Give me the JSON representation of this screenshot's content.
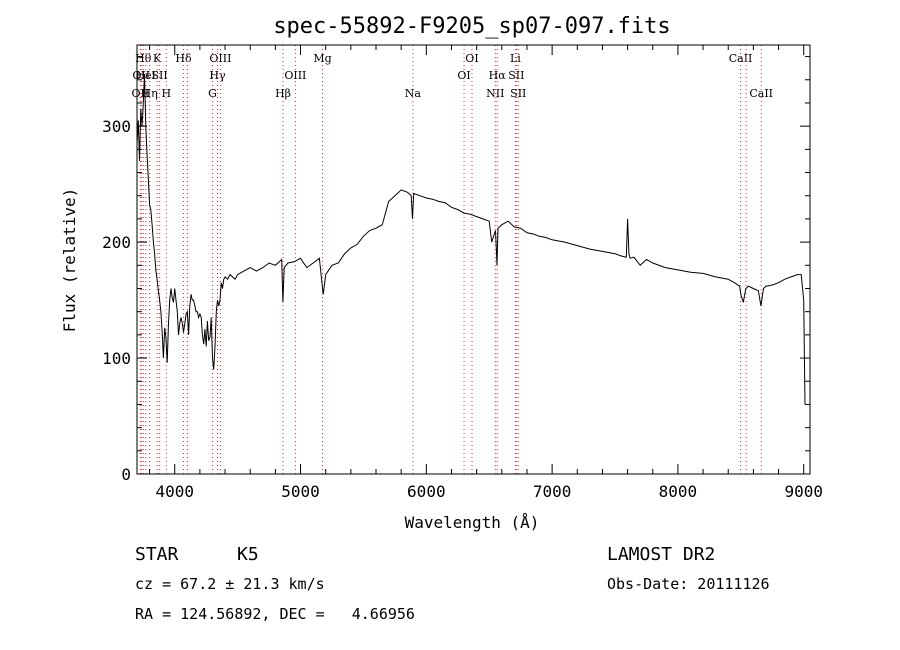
{
  "chart_data": {
    "type": "line",
    "title": "spec-55892-F9205_sp07-097.fits",
    "xlabel": "Wavelength (Å)",
    "ylabel": "Flux (relative)",
    "xlim": [
      3700,
      9050
    ],
    "ylim": [
      0,
      370
    ],
    "xticks": [
      4000,
      5000,
      6000,
      7000,
      8000,
      9000
    ],
    "yticks": [
      0,
      100,
      200,
      300
    ],
    "grid": false,
    "series": [
      {
        "x": [
          3700,
          3710,
          3720,
          3730,
          3740,
          3750,
          3760,
          3770,
          3780,
          3790,
          3800,
          3810,
          3820,
          3830,
          3840,
          3850,
          3860,
          3870,
          3880,
          3890,
          3900,
          3910,
          3920,
          3930,
          3940,
          3950,
          3960,
          3970,
          3980,
          3990,
          4000,
          4010,
          4020,
          4030,
          4040,
          4050,
          4060,
          4070,
          4080,
          4090,
          4100,
          4110,
          4120,
          4130,
          4140,
          4150,
          4160,
          4170,
          4180,
          4190,
          4200,
          4210,
          4220,
          4230,
          4240,
          4250,
          4260,
          4270,
          4280,
          4290,
          4300,
          4310,
          4320,
          4330,
          4340,
          4350,
          4360,
          4370,
          4380,
          4390,
          4400,
          4420,
          4440,
          4460,
          4480,
          4500,
          4550,
          4600,
          4650,
          4700,
          4750,
          4800,
          4850,
          4860,
          4870,
          4900,
          4950,
          5000,
          5050,
          5100,
          5150,
          5170,
          5180,
          5200,
          5250,
          5300,
          5350,
          5400,
          5450,
          5500,
          5550,
          5600,
          5650,
          5700,
          5750,
          5800,
          5850,
          5880,
          5890,
          5900,
          5950,
          6000,
          6050,
          6100,
          6150,
          6200,
          6250,
          6300,
          6350,
          6400,
          6450,
          6500,
          6520,
          6550,
          6562,
          6570,
          6600,
          6650,
          6700,
          6750,
          6800,
          6850,
          6900,
          6950,
          7000,
          7100,
          7200,
          7300,
          7400,
          7500,
          7550,
          7590,
          7600,
          7610,
          7620,
          7650,
          7700,
          7750,
          7800,
          7900,
          8000,
          8100,
          8200,
          8300,
          8400,
          8450,
          8490,
          8500,
          8520,
          8540,
          8560,
          8600,
          8640,
          8660,
          8680,
          8700,
          8750,
          8800,
          8850,
          8900,
          8950,
          8980,
          9000,
          9010
        ],
        "y": [
          285,
          305,
          270,
          315,
          300,
          320,
          345,
          300,
          275,
          255,
          232,
          228,
          215,
          200,
          190,
          175,
          168,
          158,
          150,
          140,
          122,
          100,
          126,
          118,
          96,
          128,
          150,
          160,
          152,
          148,
          160,
          150,
          140,
          120,
          130,
          135,
          130,
          122,
          130,
          138,
          140,
          120,
          145,
          155,
          150,
          150,
          145,
          140,
          140,
          135,
          138,
          135,
          120,
          112,
          125,
          110,
          132,
          115,
          118,
          135,
          100,
          90,
          110,
          140,
          150,
          145,
          150,
          165,
          160,
          168,
          170,
          168,
          172,
          170,
          168,
          172,
          175,
          178,
          175,
          178,
          182,
          180,
          185,
          148,
          178,
          182,
          183,
          186,
          178,
          182,
          186,
          165,
          155,
          172,
          180,
          182,
          190,
          195,
          198,
          205,
          210,
          212,
          215,
          235,
          240,
          245,
          243,
          240,
          220,
          242,
          240,
          238,
          237,
          235,
          234,
          230,
          228,
          225,
          224,
          222,
          220,
          218,
          200,
          210,
          180,
          212,
          215,
          218,
          213,
          212,
          208,
          207,
          205,
          204,
          202,
          200,
          197,
          194,
          192,
          190,
          188,
          187,
          220,
          190,
          186,
          187,
          180,
          185,
          182,
          178,
          176,
          174,
          173,
          170,
          168,
          165,
          162,
          155,
          148,
          160,
          162,
          160,
          158,
          145,
          160,
          162,
          163,
          165,
          168,
          170,
          172,
          172,
          150,
          60
        ]
      }
    ],
    "line_markers": [
      {
        "x": 3727,
        "row": 2,
        "label": "OII"
      },
      {
        "x": 3734,
        "row": 1,
        "label": "OII"
      },
      {
        "x": 3750,
        "row": 0,
        "label": "Hθ"
      },
      {
        "x": 3770,
        "row": 1,
        "label": "HeI"
      },
      {
        "x": 3800,
        "row": 2,
        "label": "Hη"
      },
      {
        "x": 3860,
        "row": 0,
        "label": "K"
      },
      {
        "x": 3880,
        "row": 1,
        "label": "SII"
      },
      {
        "x": 3933,
        "row": 2,
        "label": "H"
      },
      {
        "x": 4070,
        "row": 0,
        "label": "Hδ"
      },
      {
        "x": 4102,
        "row": 1,
        "label": ""
      },
      {
        "x": 4300,
        "row": 2,
        "label": "G"
      },
      {
        "x": 4340,
        "row": 1,
        "label": "Hγ"
      },
      {
        "x": 4363,
        "row": 0,
        "label": "OIII"
      },
      {
        "x": 4861,
        "row": 2,
        "label": "Hβ"
      },
      {
        "x": 4959,
        "row": 1,
        "label": "OIII"
      },
      {
        "x": 5175,
        "row": 0,
        "label": "Mg"
      },
      {
        "x": 5893,
        "row": 2,
        "label": "Na"
      },
      {
        "x": 6300,
        "row": 1,
        "label": "OI"
      },
      {
        "x": 6363,
        "row": 0,
        "label": "OI"
      },
      {
        "x": 6548,
        "row": 2,
        "label": "NII"
      },
      {
        "x": 6563,
        "row": 1,
        "label": "Hα"
      },
      {
        "x": 6708,
        "row": 0,
        "label": "Li"
      },
      {
        "x": 6716,
        "row": 1,
        "label": "SII"
      },
      {
        "x": 6731,
        "row": 2,
        "label": "SII"
      },
      {
        "x": 8498,
        "row": 0,
        "label": "CaII"
      },
      {
        "x": 8542,
        "row": 2,
        "label": ""
      },
      {
        "x": 8662,
        "row": 2,
        "label": "CaII"
      }
    ]
  },
  "info": {
    "object_class": "STAR",
    "subclass": "K5",
    "survey": "LAMOST DR2",
    "redshift": "cz = 67.2 ± 21.3 km/s",
    "obs_date": "Obs-Date: 20111126",
    "coords": "RA = 124.56892, DEC =   4.66956"
  }
}
